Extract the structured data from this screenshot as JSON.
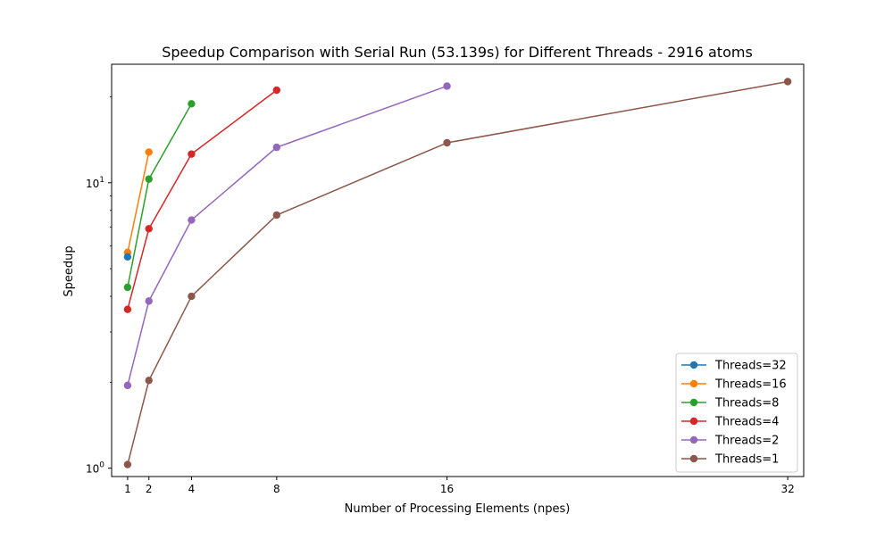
{
  "chart_data": {
    "type": "line",
    "title": "Speedup Comparison with Serial Run (53.139s) for Different Threads - 2916 atoms",
    "xlabel": "Number of Processing Elements (npes)",
    "ylabel": "Speedup",
    "x_ticks": [
      1,
      2,
      4,
      8,
      16,
      32
    ],
    "xlim": [
      0.25,
      32.75
    ],
    "y_scale": "log",
    "ylim": [
      0.935,
      26.0
    ],
    "y_ticks": [
      {
        "value": 1,
        "base": "10",
        "exp": "0"
      },
      {
        "value": 10,
        "base": "10",
        "exp": "1"
      }
    ],
    "grid": false,
    "legend_position": "lower right",
    "series": [
      {
        "name": "Threads=32",
        "color": "#1f77b4",
        "x": [
          1
        ],
        "y": [
          5.5
        ]
      },
      {
        "name": "Threads=16",
        "color": "#ff7f0e",
        "x": [
          1,
          2
        ],
        "y": [
          5.7,
          12.8
        ]
      },
      {
        "name": "Threads=8",
        "color": "#2ca02c",
        "x": [
          1,
          2,
          4
        ],
        "y": [
          4.3,
          10.3,
          18.9
        ]
      },
      {
        "name": "Threads=4",
        "color": "#d62728",
        "x": [
          1,
          2,
          4,
          8
        ],
        "y": [
          3.6,
          6.9,
          12.6,
          21.1
        ]
      },
      {
        "name": "Threads=2",
        "color": "#9467bd",
        "x": [
          1,
          2,
          4,
          8,
          16
        ],
        "y": [
          1.95,
          3.85,
          7.4,
          13.3,
          21.8
        ]
      },
      {
        "name": "Threads=1",
        "color": "#8c564b",
        "x": [
          1,
          2,
          4,
          8,
          16,
          32
        ],
        "y": [
          1.03,
          2.03,
          4.0,
          7.7,
          13.8,
          22.6
        ]
      }
    ]
  }
}
